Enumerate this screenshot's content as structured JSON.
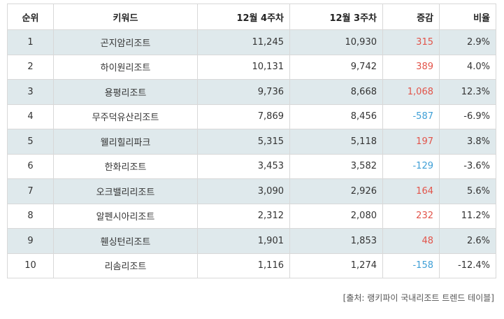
{
  "table": {
    "headers": {
      "rank": "순위",
      "keyword": "키워드",
      "week4": "12월 4주차",
      "week3": "12월 3주차",
      "change": "증감",
      "ratio": "비율"
    },
    "rows": [
      {
        "rank": "1",
        "keyword": "곤지암리조트",
        "week4": "11,245",
        "week3": "10,930",
        "change": "315",
        "ratio": "2.9%"
      },
      {
        "rank": "2",
        "keyword": "하이원리조트",
        "week4": "10,131",
        "week3": "9,742",
        "change": "389",
        "ratio": "4.0%"
      },
      {
        "rank": "3",
        "keyword": "용평리조트",
        "week4": "9,736",
        "week3": "8,668",
        "change": "1,068",
        "ratio": "12.3%"
      },
      {
        "rank": "4",
        "keyword": "무주덕유산리조트",
        "week4": "7,869",
        "week3": "8,456",
        "change": "-587",
        "ratio": "-6.9%"
      },
      {
        "rank": "5",
        "keyword": "웰리힐리파크",
        "week4": "5,315",
        "week3": "5,118",
        "change": "197",
        "ratio": "3.8%"
      },
      {
        "rank": "6",
        "keyword": "한화리조트",
        "week4": "3,453",
        "week3": "3,582",
        "change": "-129",
        "ratio": "-3.6%"
      },
      {
        "rank": "7",
        "keyword": "오크밸리리조트",
        "week4": "3,090",
        "week3": "2,926",
        "change": "164",
        "ratio": "5.6%"
      },
      {
        "rank": "8",
        "keyword": "알펜시아리조트",
        "week4": "2,312",
        "week3": "2,080",
        "change": "232",
        "ratio": "11.2%"
      },
      {
        "rank": "9",
        "keyword": "휀싱턴리조트",
        "week4": "1,901",
        "week3": "1,853",
        "change": "48",
        "ratio": "2.6%"
      },
      {
        "rank": "10",
        "keyword": "리솜리조트",
        "week4": "1,116",
        "week3": "1,274",
        "change": "-158",
        "ratio": "-12.4%"
      }
    ]
  },
  "source": "[출처: 랭키파이 국내리조트 트렌드 테이블]",
  "colors": {
    "positive": "#e2544a",
    "negative": "#3e9fd6",
    "row_shade": "#dfe9ec"
  }
}
